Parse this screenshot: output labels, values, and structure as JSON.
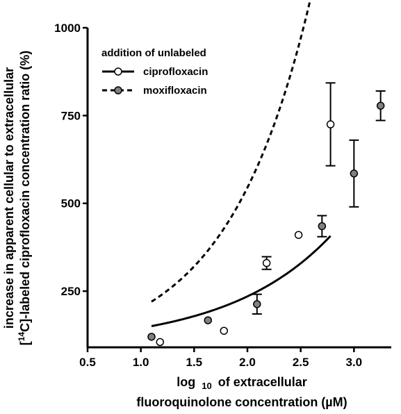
{
  "chart_data": {
    "type": "scatter",
    "title": "",
    "xlabel_line1_prefix": "log",
    "xlabel_line1_sub": "10",
    "xlabel_line1_suffix": "of extracellular",
    "xlabel_line2": "fluoroquinolone concentration (µM)",
    "ylabel_line1": "increase in apparent cellular to extracellular",
    "ylabel_line2_prefix": "[",
    "ylabel_line2_sup": "14",
    "ylabel_line2_suffix": "C]-labeled ciprofloxacin concentration ratio (%)",
    "xlim": [
      0.5,
      3.35
    ],
    "ylim": [
      90,
      1000
    ],
    "x_ticks": [
      0.5,
      1.0,
      1.5,
      2.0,
      2.5,
      3.0
    ],
    "x_tick_labels": [
      "0.5",
      "1.0",
      "1.5",
      "2.0",
      "2.5",
      "3.0"
    ],
    "y_ticks": [
      250,
      500,
      750,
      1000
    ],
    "y_tick_labels": [
      "250",
      "500",
      "750",
      "1000"
    ],
    "grid": false,
    "legend": {
      "title": "addition of unlabeled",
      "position": "top-left"
    },
    "series": [
      {
        "name": "ciprofloxacin",
        "marker": "open-circle",
        "line_style": "solid",
        "color": "#000000",
        "fill": "#ffffff",
        "points": [
          {
            "x": 1.18,
            "y": 105,
            "err": 0
          },
          {
            "x": 1.78,
            "y": 137,
            "err": 0
          },
          {
            "x": 2.18,
            "y": 330,
            "err": 18
          },
          {
            "x": 2.48,
            "y": 410,
            "err": 0
          },
          {
            "x": 2.78,
            "y": 725,
            "err": 118
          }
        ],
        "fit": {
          "a": 18.06,
          "b": 0.975,
          "c": 94.6,
          "x_range": [
            1.1,
            2.78
          ]
        }
      },
      {
        "name": "moxifloxacin",
        "marker": "filled-circle",
        "line_style": "dashed",
        "color": "#000000",
        "fill": "#808080",
        "points": [
          {
            "x": 1.1,
            "y": 120,
            "err": 0
          },
          {
            "x": 1.63,
            "y": 167,
            "err": 0
          },
          {
            "x": 2.09,
            "y": 213,
            "err": 28
          },
          {
            "x": 2.7,
            "y": 435,
            "err": 30
          },
          {
            "x": 3.0,
            "y": 585,
            "err": 95
          },
          {
            "x": 3.25,
            "y": 778,
            "err": 42
          }
        ],
        "fit": {
          "a": 36.89,
          "b": 0.7825,
          "c": 69.6,
          "x_range": [
            1.1,
            3.25
          ]
        }
      }
    ]
  }
}
